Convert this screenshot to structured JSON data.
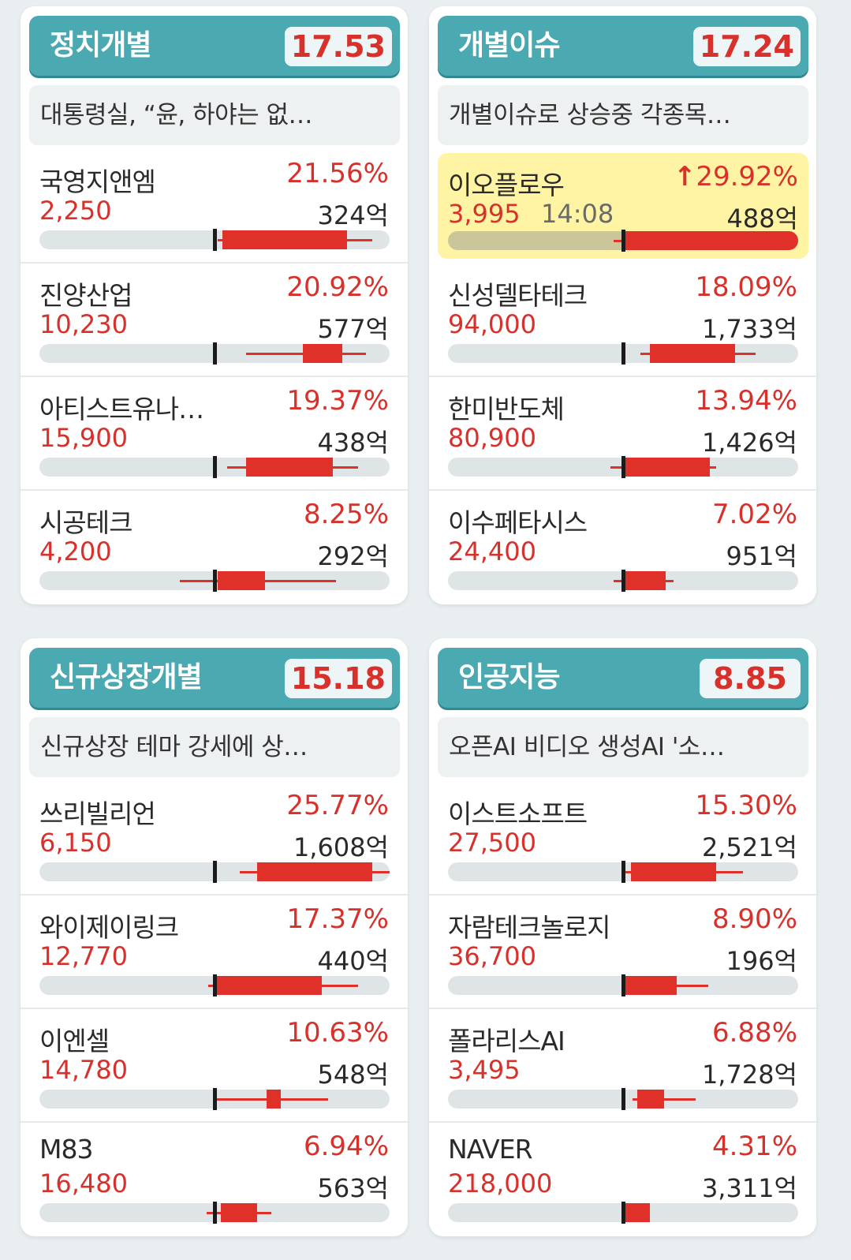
{
  "cards": [
    {
      "name": "정치개별",
      "score": "17.53",
      "news": "대통령실, “윤, 하야는 없…",
      "stocks": [
        {
          "name": "국영지앤엠",
          "pct": "21.56%",
          "price": "2,250",
          "amount": "324억"
        },
        {
          "name": "진양산업",
          "pct": "20.92%",
          "price": "10,230",
          "amount": "577억"
        },
        {
          "name": "아티스트유나…",
          "pct": "19.37%",
          "price": "15,900",
          "amount": "438억"
        },
        {
          "name": "시공테크",
          "pct": "8.25%",
          "price": "4,200",
          "amount": "292억"
        }
      ]
    },
    {
      "name": "개별이슈",
      "score": "17.24",
      "news": "개별이슈로 상승중 각종목…",
      "stocks": [
        {
          "name": "이오플로우",
          "pct": "29.92%",
          "arrow": "↑",
          "price": "3,995",
          "time": "14:08",
          "amount": "488억",
          "highlight": true
        },
        {
          "name": "신성델타테크",
          "pct": "18.09%",
          "price": "94,000",
          "amount": "1,733억"
        },
        {
          "name": "한미반도체",
          "pct": "13.94%",
          "price": "80,900",
          "amount": "1,426억"
        },
        {
          "name": "이수페타시스",
          "pct": "7.02%",
          "price": "24,400",
          "amount": "951억"
        }
      ]
    },
    {
      "name": "신규상장개별",
      "score": "15.18",
      "news": "신규상장 테마 강세에 상…",
      "stocks": [
        {
          "name": "쓰리빌리언",
          "pct": "25.77%",
          "price": "6,150",
          "amount": "1,608억"
        },
        {
          "name": "와이제이링크",
          "pct": "17.37%",
          "price": "12,770",
          "amount": "440억"
        },
        {
          "name": "이엔셀",
          "pct": "10.63%",
          "price": "14,780",
          "amount": "548억"
        },
        {
          "name": "M83",
          "pct": "6.94%",
          "price": "16,480",
          "amount": "563억"
        }
      ]
    },
    {
      "name": "인공지능",
      "score": "8.85",
      "news": "오픈AI 비디오 생성AI '소…",
      "stocks": [
        {
          "name": "이스트소프트",
          "pct": "15.30%",
          "price": "27,500",
          "amount": "2,521억"
        },
        {
          "name": "자람테크놀로지",
          "pct": "8.90%",
          "price": "36,700",
          "amount": "196억"
        },
        {
          "name": "폴라리스AI",
          "pct": "6.88%",
          "price": "3,495",
          "amount": "1,728억"
        },
        {
          "name": "NAVER",
          "pct": "4.31%",
          "price": "218,000",
          "amount": "3,311억"
        }
      ]
    }
  ],
  "colors": {
    "header": "#4aa9b1",
    "up": "#d8302b",
    "highlight": "#fff4a3"
  }
}
